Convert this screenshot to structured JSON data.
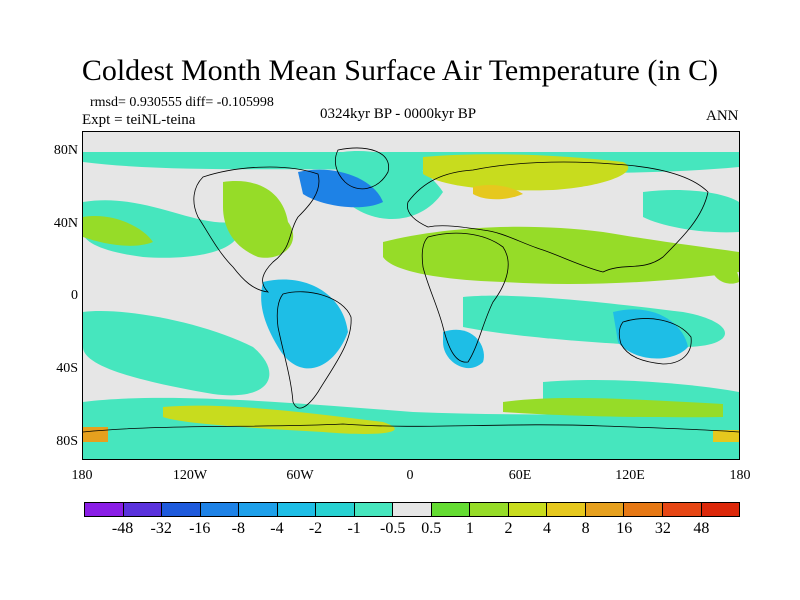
{
  "title": "Coldest Month Mean Surface Air Temperature (in C)",
  "stats": {
    "line": "rmsd= 0.930555 diff= -0.105998"
  },
  "experiment": "Expt = teiNL-teina",
  "period": "0324kyr BP - 0000kyr BP",
  "season": "ANN",
  "axes": {
    "y_labels": [
      "80N",
      "40N",
      "0",
      "40S",
      "80S"
    ],
    "x_labels": [
      "180",
      "120W",
      "60W",
      "0",
      "60E",
      "120E",
      "180"
    ]
  },
  "colorbar": {
    "labels": [
      "-48",
      "-32",
      "-16",
      "-8",
      "-4",
      "-2",
      "-1",
      "-0.5",
      "0.5",
      "1",
      "2",
      "4",
      "8",
      "16",
      "32",
      "48"
    ],
    "colors": [
      "#8a1ee6",
      "#5a32dc",
      "#1e5adc",
      "#1e82e6",
      "#1ea0ea",
      "#1ebee6",
      "#28d2d2",
      "#46e6be",
      "#e6e6e6",
      "#64dc32",
      "#96dc28",
      "#c8dc1e",
      "#e6c81e",
      "#e6a01e",
      "#e67814",
      "#e64614",
      "#dc280a"
    ]
  },
  "palette": {
    "land_neutral": "#e6e6e6",
    "ocean_cool": "#46e6be",
    "cool_mid": "#1ebee6",
    "cool_strong": "#1e82e6",
    "warm_light": "#96dc28",
    "warm_mid": "#c8dc1e",
    "warm_strong": "#e6c81e",
    "warm_hot": "#e67814"
  }
}
